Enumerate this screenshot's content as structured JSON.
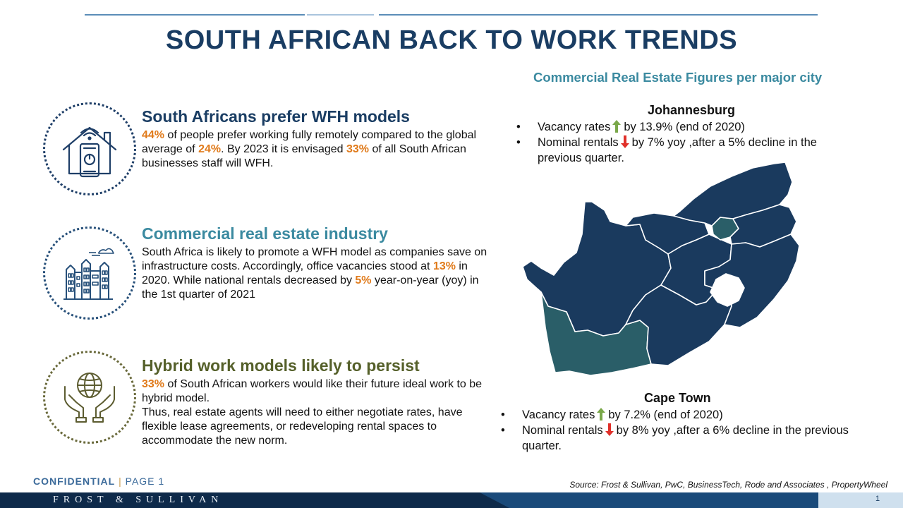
{
  "title": "SOUTH AFRICAN BACK TO WORK TRENDS",
  "sections": [
    {
      "icon": "smart-home-icon",
      "heading": "South Africans prefer WFH models",
      "segments": [
        {
          "text": "44%",
          "hl": true
        },
        {
          "text": " of people prefer working fully remotely compared to the global average of ",
          "hl": false
        },
        {
          "text": "24%",
          "hl": true
        },
        {
          "text": ". By 2023 it is  envisaged ",
          "hl": false
        },
        {
          "text": "33%",
          "hl": true
        },
        {
          "text": " of all South African businesses staff will WFH.",
          "hl": false
        }
      ]
    },
    {
      "icon": "city-buildings-icon",
      "heading": "Commercial real estate industry",
      "segments": [
        {
          "text": "South Africa is likely to promote a WFH model as companies save on infrastructure costs. Accordingly, office vacancies stood at ",
          "hl": false
        },
        {
          "text": "13%",
          "hl": true
        },
        {
          "text": "  in 2020. While national rentals decreased by ",
          "hl": false
        },
        {
          "text": "5%",
          "hl": true
        },
        {
          "text": " year-on-year (yoy) in the 1st quarter of 2021",
          "hl": false
        }
      ]
    },
    {
      "icon": "globe-hands-icon",
      "heading": "Hybrid work models likely to persist",
      "segments": [
        {
          "text": "33%",
          "hl": true
        },
        {
          "text": " of South African workers would like their future ideal work to be hybrid model.\nThus, real estate agents will need to either negotiate rates, have flexible lease agreements, or redeveloping rental spaces to accommodate the new norm.",
          "hl": false
        }
      ]
    }
  ],
  "cre_title": "Commercial Real Estate Figures per major city",
  "johannesburg": {
    "name": "Johannesburg",
    "vacancy_label": "Vacancy rates",
    "vacancy_value": "by 13.9% (end of 2020)",
    "rentals_label": "Nominal rentals",
    "rentals_value": "by 7% yoy ,after a 5% decline in the previous quarter."
  },
  "cape_town": {
    "name": "Cape Town",
    "vacancy_label": "Vacancy rates",
    "vacancy_value": "by 7.2% (end of 2020)",
    "rentals_label": "Nominal rentals",
    "rentals_value": "by 8% yoy ,after a 6% decline in the previous quarter."
  },
  "footer": {
    "confidential": "CONFIDENTIAL",
    "separator": "|",
    "page_label": "PAGE 1",
    "source": "Source: Frost & Sullivan, PwC, BusinessTech, Rode and Associates , PropertyWheel",
    "brand": "FROST & SULLIVAN",
    "page_number": "1"
  },
  "colors": {
    "navy": "#1a3d63",
    "teal": "#3b8aa0",
    "olive": "#55602a",
    "highlight": "#e07a1a",
    "map_province": "#1a3a5e",
    "map_highlight": "#2a5e68",
    "arrow_up": "#7aa84a",
    "arrow_down": "#e0302a"
  },
  "icons": {
    "arrow_up": "arrow-up-icon",
    "arrow_down": "arrow-down-icon",
    "map": "south-africa-map"
  }
}
